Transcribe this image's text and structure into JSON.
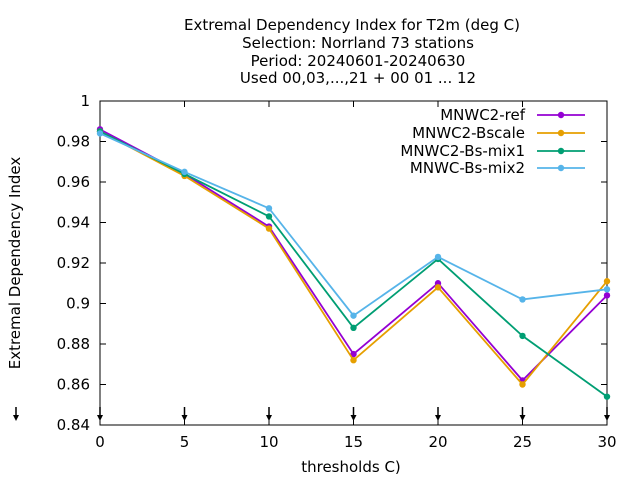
{
  "chart_data": {
    "type": "line",
    "title_lines": [
      "Extremal Dependency Index  for T2m (deg C)",
      "Selection: Norrland     73 stations",
      "Period: 20240601-20240630",
      "Used 00,03,...,21 + 00 01 ... 12"
    ],
    "xlabel": "thresholds C)",
    "ylabel": "Extremal Dependency Index",
    "x": [
      0,
      5,
      10,
      15,
      20,
      25,
      30
    ],
    "xticks": [
      "0",
      "5",
      "10",
      "15",
      "20",
      "25",
      "30"
    ],
    "yticks": [
      "0.84",
      "0.86",
      "0.88",
      "0.9",
      "0.92",
      "0.94",
      "0.96",
      "0.98",
      "1"
    ],
    "xlim": [
      0,
      30
    ],
    "ylim": [
      0.84,
      1.0
    ],
    "grid": false,
    "legend_position": "top-right",
    "series": [
      {
        "name": "MNWC2-ref",
        "color": "#9400d3",
        "values": [
          0.986,
          0.964,
          0.938,
          0.875,
          0.91,
          0.862,
          0.904
        ]
      },
      {
        "name": "MNWC2-Bscale",
        "color": "#e69f00",
        "values": [
          0.985,
          0.963,
          0.937,
          0.872,
          0.908,
          0.86,
          0.911
        ]
      },
      {
        "name": "MNWC2-Bs-mix1",
        "color": "#009e73",
        "values": [
          0.985,
          0.964,
          0.943,
          0.888,
          0.922,
          0.884,
          0.854
        ]
      },
      {
        "name": "MNWC-Bs-mix2",
        "color": "#56b4e9",
        "values": [
          0.984,
          0.965,
          0.947,
          0.894,
          0.923,
          0.902,
          0.907
        ]
      }
    ]
  }
}
